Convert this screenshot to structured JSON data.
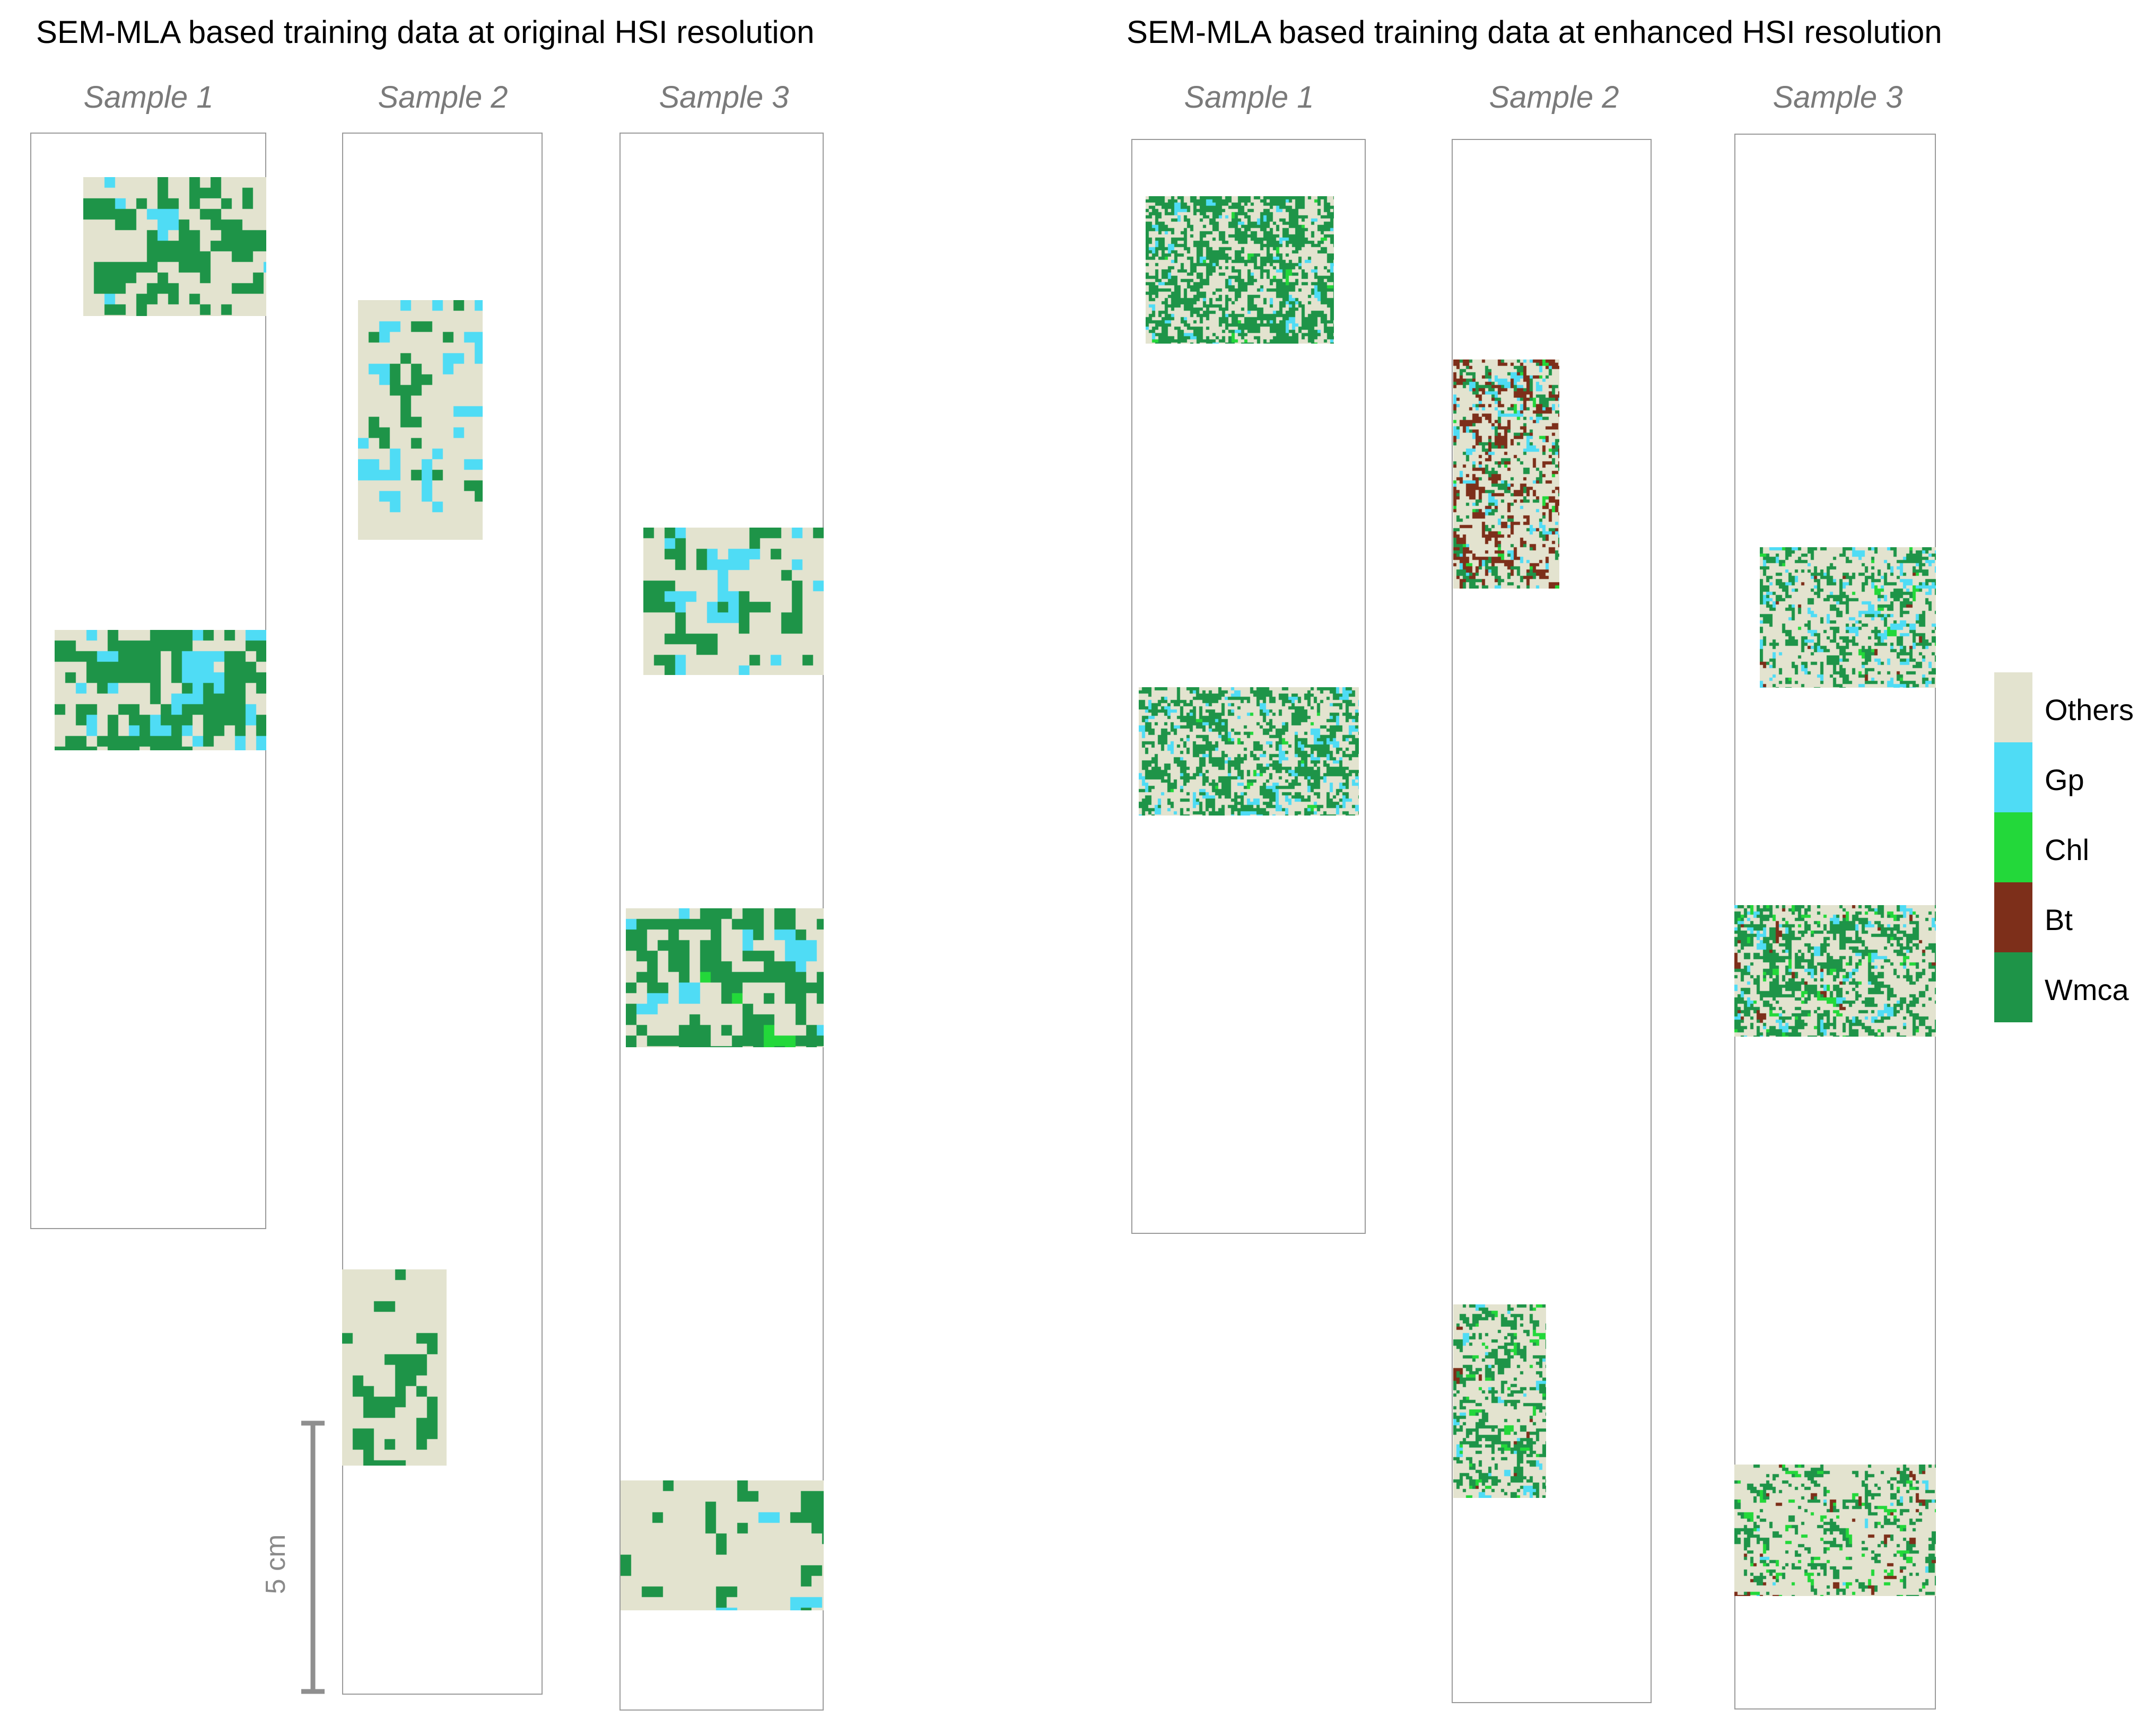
{
  "titles": {
    "left": "SEM-MLA based training data at original HSI resolution",
    "right": "SEM-MLA based training data at enhanced HSI resolution"
  },
  "samples": {
    "left": [
      "Sample 1",
      "Sample 2",
      "Sample 3"
    ],
    "right": [
      "Sample 1",
      "Sample 2",
      "Sample 3"
    ]
  },
  "scale_bar": {
    "label": "5 cm"
  },
  "legend": [
    {
      "label": "Others",
      "color": "#e3e3cf"
    },
    {
      "label": "Gp",
      "color": "#4fdcf5"
    },
    {
      "label": "Chl",
      "color": "#23d83a"
    },
    {
      "label": "Bt",
      "color": "#7d2f1a"
    },
    {
      "label": "Wmca",
      "color": "#1e9448"
    }
  ]
}
